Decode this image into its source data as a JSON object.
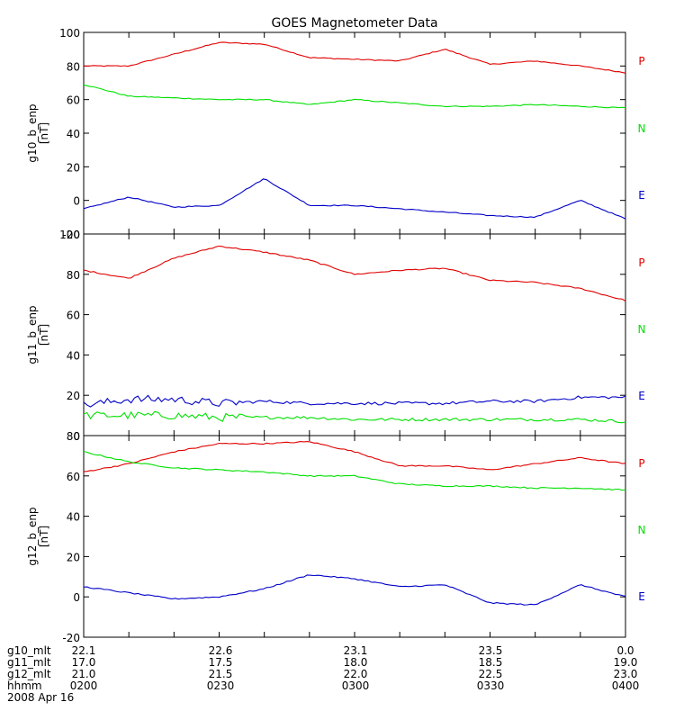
{
  "chart_data": {
    "type": "line",
    "title": "GOES Magnetometer Data",
    "x": [
      "0200",
      "0210",
      "0220",
      "0230",
      "0240",
      "0250",
      "0300",
      "0310",
      "0320",
      "0330",
      "0340",
      "0350",
      "0400"
    ],
    "colors": {
      "P": "#e00000",
      "N": "#00e000",
      "E": "#0000c8"
    },
    "panels": [
      {
        "ylabel": "g10_b_enp",
        "unit": "[nT]",
        "ylim": [
          -20,
          100
        ],
        "yticks": [
          "100",
          "80",
          "60",
          "40",
          "20",
          "0",
          "-20"
        ],
        "series": [
          {
            "name": "P",
            "values": [
              80,
              80,
              87,
              94,
              93,
              85,
              84,
              83,
              90,
              81,
              83,
              80,
              76
            ]
          },
          {
            "name": "N",
            "values": [
              69,
              62,
              61,
              60,
              60,
              57,
              60,
              58,
              56,
              56,
              57,
              56,
              55
            ]
          },
          {
            "name": "E",
            "values": [
              -5,
              2,
              -4,
              -3,
              13,
              -3,
              -3,
              -5,
              -7,
              -9,
              -10,
              0,
              -11
            ]
          }
        ]
      },
      {
        "ylabel": "g11_b_enp",
        "unit": "[nT]",
        "ylim": [
          0,
          100
        ],
        "yticks": [
          "100",
          "80",
          "60",
          "40",
          "20",
          "0"
        ],
        "series": [
          {
            "name": "P",
            "values": [
              82,
              78,
              88,
              94,
              91,
              87,
              80,
              82,
              83,
              77,
              76,
              73,
              67
            ]
          },
          {
            "name": "N",
            "values": [
              10,
              10,
              10,
              9,
              9,
              9,
              8,
              8,
              8,
              8,
              8,
              8,
              7
            ]
          },
          {
            "name": "E",
            "values": [
              15,
              18,
              18,
              16,
              17,
              16,
              16,
              16,
              16,
              17,
              17,
              19,
              19
            ]
          }
        ]
      },
      {
        "ylabel": "g12_b_enp",
        "unit": "[nT]",
        "ylim": [
          -20,
          80
        ],
        "yticks": [
          "80",
          "60",
          "40",
          "20",
          "0",
          "-20"
        ],
        "series": [
          {
            "name": "P",
            "values": [
              62,
              66,
              72,
              76,
              76,
              77,
              72,
              65,
              65,
              63,
              66,
              69,
              66
            ]
          },
          {
            "name": "N",
            "values": [
              72,
              67,
              64,
              63,
              62,
              60,
              60,
              56,
              55,
              55,
              54,
              54,
              53
            ]
          },
          {
            "name": "E",
            "values": [
              5,
              2,
              -1,
              0,
              4,
              11,
              9,
              5,
              6,
              -3,
              -4,
              6,
              0
            ]
          }
        ]
      }
    ],
    "footer": {
      "rows": [
        {
          "label": "g10_mlt",
          "ticks": [
            "22.1",
            "22.6",
            "23.1",
            "23.5",
            "0.0"
          ]
        },
        {
          "label": "g11_mlt",
          "ticks": [
            "17.0",
            "17.5",
            "18.0",
            "18.5",
            "19.0"
          ]
        },
        {
          "label": "g12_mlt",
          "ticks": [
            "21.0",
            "21.5",
            "22.0",
            "22.5",
            "23.0"
          ]
        },
        {
          "label": "hhmm",
          "ticks": [
            "0200",
            "0230",
            "0300",
            "0330",
            "0400"
          ]
        }
      ],
      "date": "2008 Apr 16"
    }
  }
}
